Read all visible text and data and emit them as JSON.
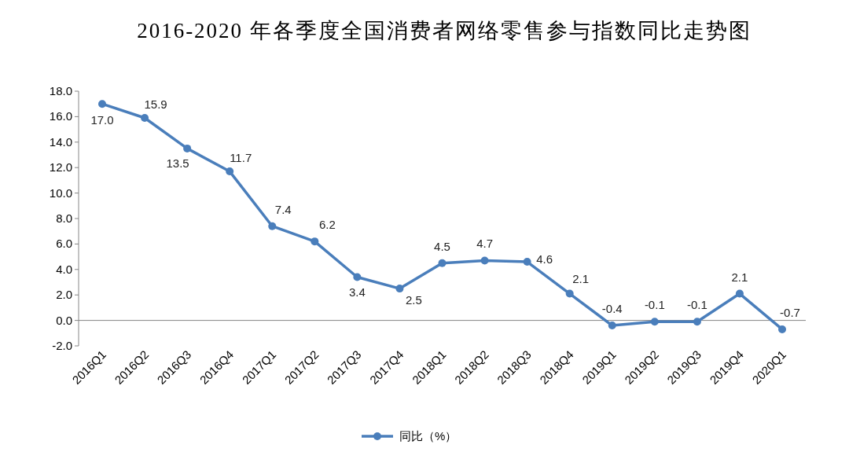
{
  "chart_data": {
    "type": "line",
    "title": "2016-2020 年各季度全国消费者网络零售参与指数同比走势图",
    "categories": [
      "2016Q1",
      "2016Q2",
      "2016Q3",
      "2016Q4",
      "2017Q1",
      "2017Q2",
      "2017Q3",
      "2017Q4",
      "2018Q1",
      "2018Q2",
      "2018Q3",
      "2018Q4",
      "2019Q1",
      "2019Q2",
      "2019Q3",
      "2019Q4",
      "2020Q1"
    ],
    "series": [
      {
        "name": "同比（%）",
        "color": "#4a7ebb",
        "values": [
          17.0,
          15.9,
          13.5,
          11.7,
          7.4,
          6.2,
          3.4,
          2.5,
          4.5,
          4.7,
          4.6,
          2.1,
          -0.4,
          -0.1,
          -0.1,
          2.1,
          -0.7
        ],
        "value_labels": [
          "17.0",
          "15.9",
          "13.5",
          "11.7",
          "7.4",
          "6.2",
          "3.4",
          "2.5",
          "4.5",
          "4.7",
          "4.6",
          "2.1",
          "-0.4",
          "-0.1",
          "-0.1",
          "2.1",
          "-0.7"
        ]
      }
    ],
    "ylim": [
      -2,
      18
    ],
    "yticks": [
      {
        "value": -2,
        "label": "-2.0"
      },
      {
        "value": 0,
        "label": "0.0"
      },
      {
        "value": 2,
        "label": "2.0"
      },
      {
        "value": 4,
        "label": "4.0"
      },
      {
        "value": 6,
        "label": "6.0"
      },
      {
        "value": 8,
        "label": "8.0"
      },
      {
        "value": 10,
        "label": "10.0"
      },
      {
        "value": 12,
        "label": "12.0"
      },
      {
        "value": 14,
        "label": "14.0"
      },
      {
        "value": 16,
        "label": "16.0"
      },
      {
        "value": 18,
        "label": "18.0"
      }
    ],
    "legend": "bottom",
    "marker": "circle",
    "line_style": "solid"
  }
}
